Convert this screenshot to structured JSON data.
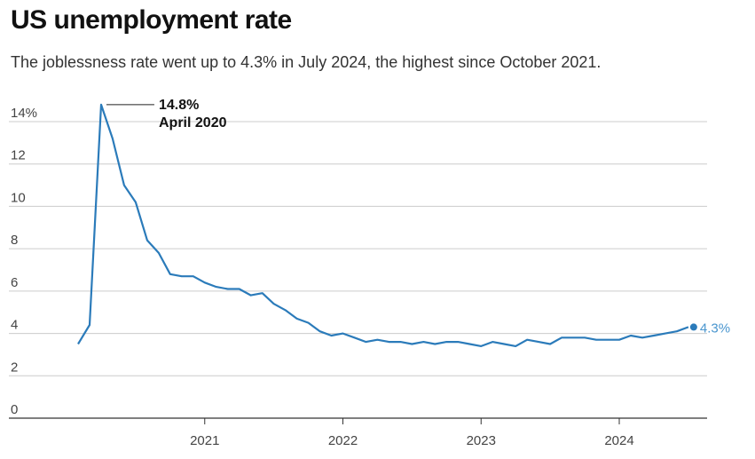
{
  "chart_data": {
    "type": "line",
    "title": "US unemployment rate",
    "subtitle": "The joblessness rate went up to 4.3% in July 2024, the highest since October 2021.",
    "xlabel": "",
    "ylabel": "",
    "ylim": [
      0,
      14
    ],
    "yticks": [
      0,
      2,
      4,
      6,
      8,
      10,
      12,
      14
    ],
    "ytick_labels": [
      "0",
      "2",
      "4",
      "6",
      "8",
      "10",
      "12",
      "14%"
    ],
    "xticks": [
      "2021",
      "2022",
      "2023",
      "2024"
    ],
    "grid": true,
    "start": "2020-02",
    "series": [
      {
        "name": "Unemployment rate",
        "color": "#2b7bba",
        "values": [
          3.5,
          4.4,
          14.8,
          13.2,
          11.0,
          10.2,
          8.4,
          7.8,
          6.8,
          6.7,
          6.7,
          6.4,
          6.2,
          6.1,
          6.1,
          5.8,
          5.9,
          5.4,
          5.1,
          4.7,
          4.5,
          4.1,
          3.9,
          4.0,
          3.8,
          3.6,
          3.7,
          3.6,
          3.6,
          3.5,
          3.6,
          3.5,
          3.6,
          3.6,
          3.5,
          3.4,
          3.6,
          3.5,
          3.4,
          3.7,
          3.6,
          3.5,
          3.8,
          3.8,
          3.8,
          3.7,
          3.7,
          3.7,
          3.9,
          3.8,
          3.9,
          4.0,
          4.1,
          4.3
        ]
      }
    ],
    "annotations": {
      "peak_value": "14.8%",
      "peak_date": "April 2020",
      "end_label": "4.3%"
    },
    "end_label_color": "#4a96cf"
  }
}
